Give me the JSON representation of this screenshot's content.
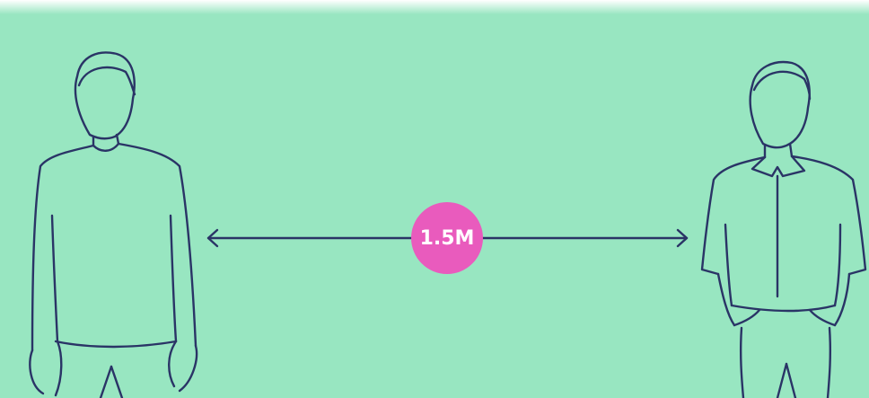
{
  "distance_label": "1.5M"
}
